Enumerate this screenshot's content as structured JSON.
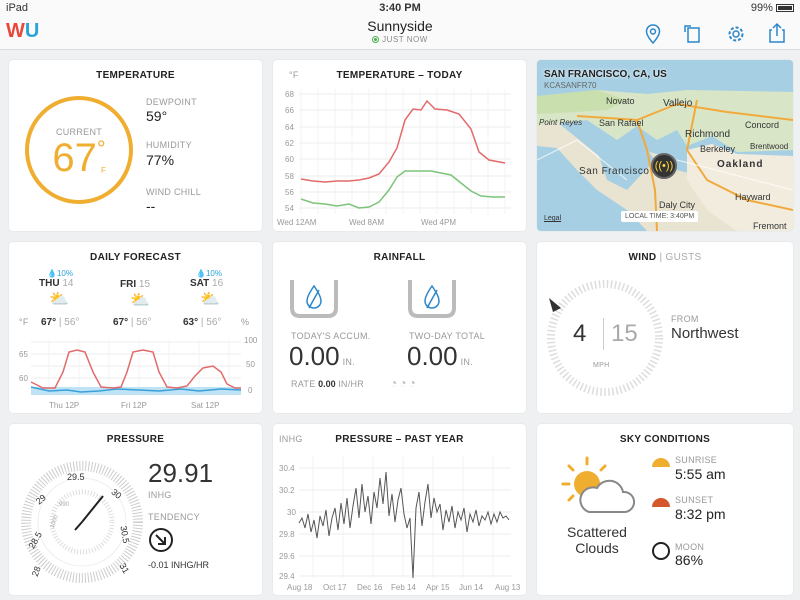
{
  "statusbar": {
    "device": "iPad",
    "time": "3:40 PM",
    "battery": "99%"
  },
  "nav": {
    "logo_w": "W",
    "logo_u": "U",
    "title": "Sunnyside",
    "subtitle": "JUST NOW"
  },
  "temperature": {
    "title": "TEMPERATURE",
    "current_label": "CURRENT",
    "current_value": "67",
    "unit": "F",
    "degree": "°",
    "dewpoint_label": "DEWPOINT",
    "dewpoint": "59°",
    "humidity_label": "HUMIDITY",
    "humidity": "77%",
    "windchill_label": "WIND CHILL",
    "windchill": "--"
  },
  "temp_today": {
    "title": "TEMPERATURE – TODAY",
    "unit": "°F",
    "yticks": [
      "68",
      "66",
      "64",
      "62",
      "60",
      "58",
      "56",
      "54"
    ],
    "xticks": [
      "Wed 12AM",
      "Wed 8AM",
      "Wed 4PM"
    ]
  },
  "map": {
    "title": "SAN FRANCISCO, CA, US",
    "station": "KCASANFR70",
    "legal": "Legal",
    "local_time": "LOCAL TIME: 3:40PM",
    "places": [
      "Novato",
      "Vallejo",
      "Concord",
      "Point Reyes",
      "San Rafael",
      "Richmond",
      "Berkeley",
      "Brentwood",
      "Oakland",
      "San Francisco",
      "Daly City",
      "Hayward",
      "Fremont"
    ]
  },
  "forecast": {
    "title": "DAILY FORECAST",
    "unit_f": "°F",
    "unit_pct": "%",
    "days": [
      {
        "day": "THU",
        "date": "14",
        "precip": "10%",
        "hi": "67°",
        "lo": "56°"
      },
      {
        "day": "FRI",
        "date": "15",
        "precip": "",
        "hi": "67°",
        "lo": "56°"
      },
      {
        "day": "SAT",
        "date": "16",
        "precip": "10%",
        "hi": "63°",
        "lo": "56°"
      }
    ],
    "yleft": [
      "65",
      "60"
    ],
    "yright": [
      "100",
      "50",
      "0"
    ],
    "xticks": [
      "Thu 12P",
      "Fri 12P",
      "Sat 12P"
    ],
    "sep": "|"
  },
  "rainfall": {
    "title": "RAINFALL",
    "today_label": "TODAY'S ACCUM.",
    "today_value": "0.00",
    "today_unit": "IN.",
    "twoday_label": "TWO-DAY TOTAL",
    "twoday_value": "0.00",
    "twoday_unit": "IN.",
    "rate_label": "RATE",
    "rate_value": "0.00",
    "rate_unit": "IN/HR"
  },
  "wind": {
    "title": "WIND",
    "sep": "|",
    "gusts_label": "GUSTS",
    "speed": "4",
    "gust": "15",
    "unit": "MPH",
    "from_label": "FROM",
    "from_dir": "Northwest"
  },
  "pressure": {
    "title": "PRESSURE",
    "value": "29.91",
    "unit": "INHG",
    "tendency_label": "TENDENCY",
    "tendency_value": "-0.01 INHG/HR",
    "dial_labels": [
      "28",
      "28.5",
      "29",
      "29.5",
      "30",
      "30.5",
      "31"
    ],
    "inner_labels": [
      "980",
      "990",
      "1000",
      "1010",
      "1020",
      "1030",
      "1040",
      "1050"
    ]
  },
  "pressure_year": {
    "title": "PRESSURE – PAST YEAR",
    "unit": "INHG",
    "yticks": [
      "30.4",
      "30.2",
      "30",
      "29.8",
      "29.6",
      "29.4"
    ],
    "xticks": [
      "Aug 18",
      "Oct 17",
      "Dec 16",
      "Feb 14",
      "Apr 15",
      "Jun 14",
      "Aug 13"
    ]
  },
  "sky": {
    "title": "SKY CONDITIONS",
    "condition_line1": "Scattered",
    "condition_line2": "Clouds",
    "sunrise_label": "SUNRISE",
    "sunrise": "5:55 am",
    "sunset_label": "SUNSET",
    "sunset": "8:32 pm",
    "moon_label": "MOON",
    "moon": "86%"
  },
  "colors": {
    "accent_orange": "#f0ae31",
    "red_line": "#e26a6a",
    "green_line": "#7cc47a",
    "blue": "#3aa0d8",
    "nav_blue": "#2b87c9"
  }
}
